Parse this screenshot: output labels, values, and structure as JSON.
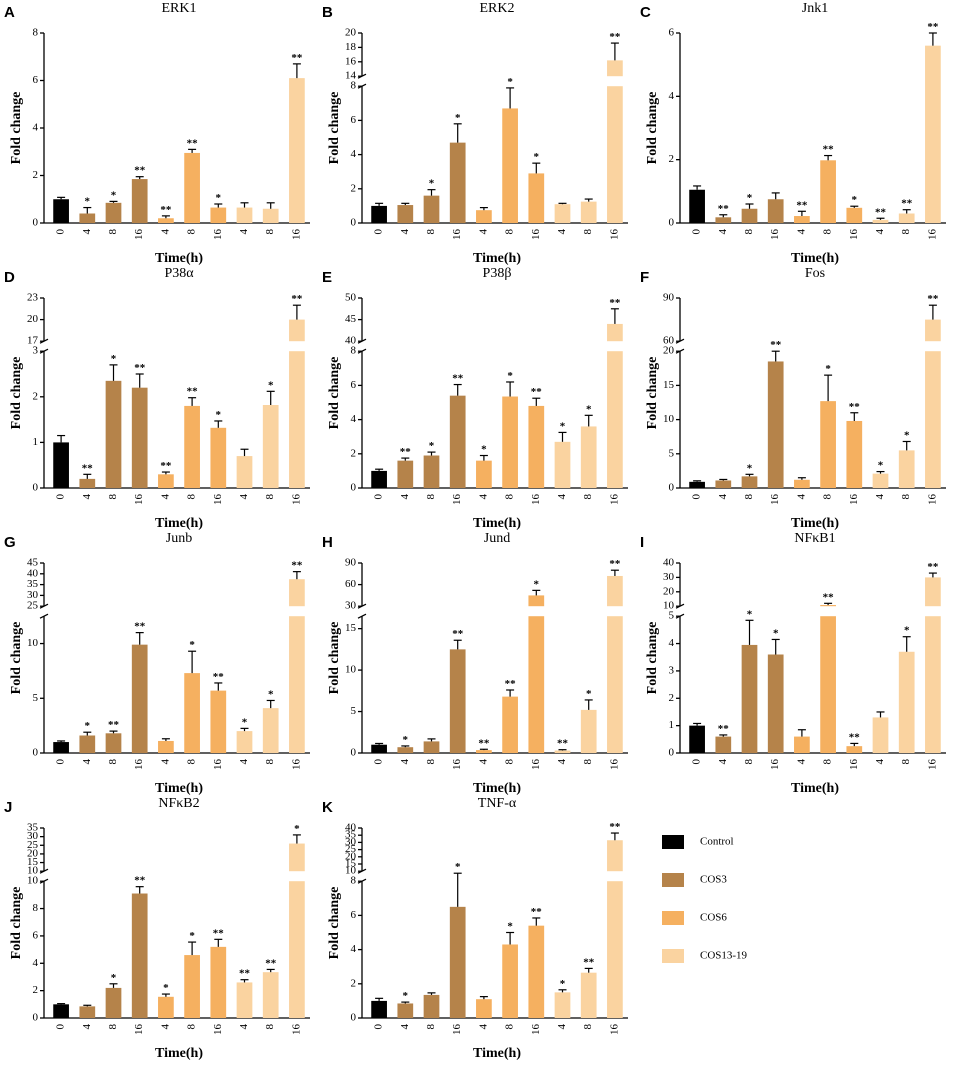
{
  "chart_data": [
    {
      "type": "bar",
      "panel": "A",
      "title": "ERK1",
      "ylabel": "Fold change",
      "xlabel": "Time(h)",
      "categories": [
        "0",
        "4",
        "8",
        "16",
        "4",
        "8",
        "16",
        "4",
        "8",
        "16"
      ],
      "colors": [
        "#000000",
        "#b5834a",
        "#b5834a",
        "#b5834a",
        "#f5b060",
        "#f5b060",
        "#f5b060",
        "#fad3a0",
        "#fad3a0",
        "#fad3a0"
      ],
      "values": [
        1.0,
        0.4,
        0.85,
        1.85,
        0.2,
        2.95,
        0.65,
        0.65,
        0.6,
        6.1
      ],
      "errors": [
        0.08,
        0.25,
        0.06,
        0.1,
        0.1,
        0.15,
        0.15,
        0.2,
        0.25,
        0.6
      ],
      "annotations": [
        null,
        "*",
        "*",
        "**",
        "**",
        "**",
        "*",
        null,
        null,
        "**"
      ],
      "ylim": [
        0,
        8
      ],
      "yticks": [
        0,
        2,
        4,
        6,
        8
      ]
    },
    {
      "type": "bar",
      "panel": "B",
      "title": "ERK2",
      "ylabel": "Fold change",
      "xlabel": "Time(h)",
      "categories": [
        "0",
        "4",
        "8",
        "16",
        "4",
        "8",
        "16",
        "4",
        "8",
        "16"
      ],
      "colors": [
        "#000000",
        "#b5834a",
        "#b5834a",
        "#b5834a",
        "#f5b060",
        "#f5b060",
        "#f5b060",
        "#fad3a0",
        "#fad3a0",
        "#fad3a0"
      ],
      "values": [
        1.0,
        1.05,
        1.6,
        4.7,
        0.75,
        6.7,
        2.9,
        1.1,
        1.25,
        16.2
      ],
      "errors": [
        0.15,
        0.1,
        0.35,
        1.1,
        0.15,
        1.2,
        0.6,
        0.05,
        0.15,
        2.4
      ],
      "annotations": [
        null,
        null,
        "*",
        "*",
        null,
        "*",
        "*",
        null,
        null,
        "**"
      ],
      "ylim": [
        0,
        8
      ],
      "yticks": [
        0,
        2,
        4,
        6,
        8
      ],
      "y_break": {
        "ylim": [
          14,
          20
        ],
        "yticks": [
          14,
          16,
          18,
          20
        ]
      }
    },
    {
      "type": "bar",
      "panel": "C",
      "title": "Jnk1",
      "ylabel": "Fold change",
      "xlabel": "Time(h)",
      "categories": [
        "0",
        "4",
        "8",
        "16",
        "4",
        "8",
        "16",
        "4",
        "8",
        "16"
      ],
      "colors": [
        "#000000",
        "#b5834a",
        "#b5834a",
        "#b5834a",
        "#f5b060",
        "#f5b060",
        "#f5b060",
        "#fad3a0",
        "#fad3a0",
        "#fad3a0"
      ],
      "values": [
        1.05,
        0.18,
        0.45,
        0.75,
        0.22,
        1.98,
        0.48,
        0.1,
        0.3,
        5.6
      ],
      "errors": [
        0.12,
        0.08,
        0.15,
        0.2,
        0.15,
        0.15,
        0.05,
        0.05,
        0.12,
        0.4
      ],
      "annotations": [
        null,
        "**",
        "*",
        null,
        "**",
        "**",
        "*",
        "**",
        "**",
        "**"
      ],
      "ylim": [
        0,
        6
      ],
      "yticks": [
        0,
        2,
        4,
        6
      ]
    },
    {
      "type": "bar",
      "panel": "D",
      "title": "P38α",
      "ylabel": "Fold change",
      "xlabel": "Time(h)",
      "categories": [
        "0",
        "4",
        "8",
        "16",
        "4",
        "8",
        "16",
        "4",
        "8",
        "16"
      ],
      "colors": [
        "#000000",
        "#b5834a",
        "#b5834a",
        "#b5834a",
        "#f5b060",
        "#f5b060",
        "#f5b060",
        "#fad3a0",
        "#fad3a0",
        "#fad3a0"
      ],
      "values": [
        1.0,
        0.2,
        2.35,
        2.2,
        0.3,
        1.8,
        1.32,
        0.7,
        1.82,
        20
      ],
      "errors": [
        0.15,
        0.1,
        0.35,
        0.3,
        0.05,
        0.18,
        0.15,
        0.15,
        0.3,
        2
      ],
      "annotations": [
        null,
        "**",
        "*",
        "**",
        "**",
        "**",
        "*",
        null,
        "*",
        "**"
      ],
      "ylim": [
        0,
        3
      ],
      "yticks": [
        0,
        1,
        2,
        3
      ],
      "y_break": {
        "ylim": [
          17,
          23
        ],
        "yticks": [
          17,
          20,
          23
        ]
      }
    },
    {
      "type": "bar",
      "panel": "E",
      "title": "P38β",
      "ylabel": "Fold change",
      "xlabel": "Time(h)",
      "categories": [
        "0",
        "4",
        "8",
        "16",
        "4",
        "8",
        "16",
        "4",
        "8",
        "16"
      ],
      "colors": [
        "#000000",
        "#b5834a",
        "#b5834a",
        "#b5834a",
        "#f5b060",
        "#f5b060",
        "#f5b060",
        "#fad3a0",
        "#fad3a0",
        "#fad3a0"
      ],
      "values": [
        1.0,
        1.6,
        1.9,
        5.4,
        1.6,
        5.35,
        4.8,
        2.7,
        3.6,
        44
      ],
      "errors": [
        0.1,
        0.15,
        0.2,
        0.65,
        0.3,
        0.85,
        0.45,
        0.55,
        0.65,
        3.5
      ],
      "annotations": [
        null,
        "**",
        "*",
        "**",
        "*",
        "*",
        "**",
        "*",
        "*",
        "**"
      ],
      "ylim": [
        0,
        8
      ],
      "yticks": [
        0,
        2,
        4,
        6,
        8
      ],
      "y_break": {
        "ylim": [
          40,
          50
        ],
        "yticks": [
          40,
          45,
          50
        ]
      }
    },
    {
      "type": "bar",
      "panel": "F",
      "title": "Fos",
      "ylabel": "Fold change",
      "xlabel": "Time(h)",
      "categories": [
        "0",
        "4",
        "8",
        "16",
        "4",
        "8",
        "16",
        "4",
        "8",
        "16"
      ],
      "colors": [
        "#000000",
        "#b5834a",
        "#b5834a",
        "#b5834a",
        "#f5b060",
        "#f5b060",
        "#f5b060",
        "#fad3a0",
        "#fad3a0",
        "#fad3a0"
      ],
      "values": [
        0.9,
        1.1,
        1.7,
        18.5,
        1.2,
        12.7,
        9.8,
        2.1,
        5.5,
        75
      ],
      "errors": [
        0.15,
        0.15,
        0.3,
        1.5,
        0.3,
        3.8,
        1.2,
        0.3,
        1.3,
        10
      ],
      "annotations": [
        null,
        null,
        "*",
        "**",
        null,
        "*",
        "**",
        "*",
        "*",
        "**"
      ],
      "ylim": [
        0,
        20
      ],
      "yticks": [
        0,
        5,
        10,
        15,
        20
      ],
      "y_break": {
        "ylim": [
          60,
          90
        ],
        "yticks": [
          60,
          90
        ]
      }
    },
    {
      "type": "bar",
      "panel": "G",
      "title": "Junb",
      "ylabel": "Fold change",
      "xlabel": "Time(h)",
      "categories": [
        "0",
        "4",
        "8",
        "16",
        "4",
        "8",
        "16",
        "4",
        "8",
        "16"
      ],
      "colors": [
        "#000000",
        "#b5834a",
        "#b5834a",
        "#b5834a",
        "#f5b060",
        "#f5b060",
        "#f5b060",
        "#fad3a0",
        "#fad3a0",
        "#fad3a0"
      ],
      "values": [
        1.0,
        1.6,
        1.8,
        9.9,
        1.1,
        7.3,
        5.7,
        2.0,
        4.1,
        37.5
      ],
      "errors": [
        0.1,
        0.3,
        0.2,
        1.1,
        0.2,
        2.0,
        0.7,
        0.25,
        0.7,
        3.5
      ],
      "annotations": [
        null,
        "*",
        "**",
        "**",
        null,
        "*",
        "**",
        "*",
        "*",
        "**"
      ],
      "ylim": [
        0,
        12.5
      ],
      "yticks": [
        0,
        5,
        10
      ],
      "y_break": {
        "ylim": [
          25,
          45
        ],
        "yticks": [
          25,
          30,
          35,
          40,
          45
        ]
      }
    },
    {
      "type": "bar",
      "panel": "H",
      "title": "Jund",
      "ylabel": "Fold change",
      "xlabel": "Time(h)",
      "categories": [
        "0",
        "4",
        "8",
        "16",
        "4",
        "8",
        "16",
        "4",
        "8",
        "16"
      ],
      "colors": [
        "#000000",
        "#b5834a",
        "#b5834a",
        "#b5834a",
        "#f5b060",
        "#f5b060",
        "#f5b060",
        "#fad3a0",
        "#fad3a0",
        "#fad3a0"
      ],
      "values": [
        1.0,
        0.7,
        1.4,
        12.5,
        0.35,
        6.8,
        45,
        0.3,
        5.2,
        72
      ],
      "errors": [
        0.15,
        0.15,
        0.3,
        1.1,
        0.1,
        0.8,
        7,
        0.1,
        1.2,
        8
      ],
      "annotations": [
        null,
        "*",
        null,
        "**",
        "**",
        "**",
        "*",
        "**",
        "*",
        "**"
      ],
      "ylim": [
        0,
        16.5
      ],
      "yticks": [
        0,
        5,
        10,
        15
      ],
      "y_break": {
        "ylim": [
          30,
          90
        ],
        "yticks": [
          30,
          60,
          90
        ]
      }
    },
    {
      "type": "bar",
      "panel": "I",
      "title": "NFκB1",
      "ylabel": "Fold change",
      "xlabel": "Time(h)",
      "categories": [
        "0",
        "4",
        "8",
        "16",
        "4",
        "8",
        "16",
        "4",
        "8",
        "16"
      ],
      "colors": [
        "#000000",
        "#b5834a",
        "#b5834a",
        "#b5834a",
        "#f5b060",
        "#f5b060",
        "#f5b060",
        "#fad3a0",
        "#fad3a0",
        "#fad3a0"
      ],
      "values": [
        1.0,
        0.6,
        3.95,
        3.6,
        0.6,
        10.8,
        0.25,
        1.3,
        3.7,
        30
      ],
      "errors": [
        0.08,
        0.06,
        0.9,
        0.55,
        0.25,
        1.2,
        0.1,
        0.2,
        0.55,
        3
      ],
      "annotations": [
        null,
        "**",
        "*",
        "*",
        null,
        "**",
        "**",
        null,
        "*",
        "**"
      ],
      "ylim": [
        0,
        5
      ],
      "yticks": [
        0,
        1,
        2,
        3,
        4,
        5
      ],
      "y_break": {
        "ylim": [
          10,
          40
        ],
        "yticks": [
          10,
          20,
          30,
          40
        ]
      }
    },
    {
      "type": "bar",
      "panel": "J",
      "title": "NFκB2",
      "ylabel": "Fold change",
      "xlabel": "Time(h)",
      "categories": [
        "0",
        "4",
        "8",
        "16",
        "4",
        "8",
        "16",
        "4",
        "8",
        "16"
      ],
      "colors": [
        "#000000",
        "#b5834a",
        "#b5834a",
        "#b5834a",
        "#f5b060",
        "#f5b060",
        "#f5b060",
        "#fad3a0",
        "#fad3a0",
        "#fad3a0"
      ],
      "values": [
        1.0,
        0.85,
        2.2,
        9.1,
        1.55,
        4.6,
        5.2,
        2.6,
        3.35,
        26
      ],
      "errors": [
        0.05,
        0.08,
        0.3,
        0.5,
        0.2,
        0.95,
        0.55,
        0.2,
        0.2,
        5
      ],
      "annotations": [
        null,
        null,
        "*",
        "**",
        "*",
        "*",
        "**",
        "**",
        "**",
        "*"
      ],
      "ylim": [
        0,
        10
      ],
      "yticks": [
        0,
        2,
        4,
        6,
        8,
        10
      ],
      "y_break": {
        "ylim": [
          10,
          35
        ],
        "yticks": [
          10,
          15,
          20,
          25,
          30,
          35
        ]
      }
    },
    {
      "type": "bar",
      "panel": "K",
      "title": "TNF-α",
      "ylabel": "Fold change",
      "xlabel": "Time(h)",
      "categories": [
        "0",
        "4",
        "8",
        "16",
        "4",
        "8",
        "16",
        "4",
        "8",
        "16"
      ],
      "colors": [
        "#000000",
        "#b5834a",
        "#b5834a",
        "#b5834a",
        "#f5b060",
        "#f5b060",
        "#f5b060",
        "#fad3a0",
        "#fad3a0",
        "#fad3a0"
      ],
      "values": [
        1.0,
        0.85,
        1.35,
        6.5,
        1.1,
        4.3,
        5.4,
        1.5,
        2.65,
        31.5
      ],
      "errors": [
        0.15,
        0.08,
        0.12,
        2.1,
        0.15,
        0.7,
        0.45,
        0.15,
        0.25,
        5
      ],
      "annotations": [
        null,
        "*",
        null,
        "*",
        null,
        "*",
        "**",
        "*",
        "**",
        "**"
      ],
      "ylim": [
        0,
        8
      ],
      "yticks": [
        0,
        2,
        4,
        6,
        8
      ],
      "y_break": {
        "ylim": [
          10,
          40
        ],
        "yticks": [
          10,
          15,
          20,
          25,
          30,
          35,
          40
        ]
      }
    }
  ],
  "legend": [
    {
      "name": "Control",
      "color": "#000000"
    },
    {
      "name": "COS3",
      "color": "#b5834a"
    },
    {
      "name": "COS6",
      "color": "#f5b060"
    },
    {
      "name": "COS13-19",
      "color": "#fad3a0"
    }
  ]
}
